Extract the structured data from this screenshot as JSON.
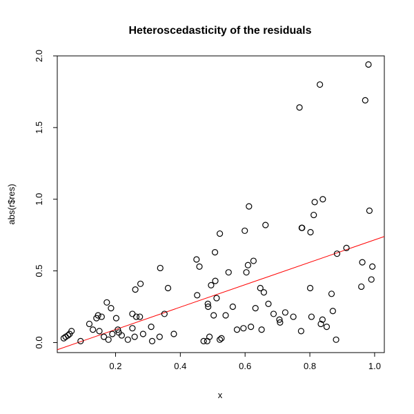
{
  "chart_data": {
    "type": "scatter",
    "title": "Heteroscedasticity of the residuals",
    "xlabel": "x",
    "ylabel": "abs(r$res)",
    "xlim": [
      0.02,
      1.03
    ],
    "ylim": [
      -0.07,
      2.0
    ],
    "xticks": [
      0.2,
      0.4,
      0.6,
      0.8,
      1.0
    ],
    "xtick_labels": [
      "0.2",
      "0.4",
      "0.6",
      "0.8",
      "1.0"
    ],
    "yticks": [
      0.0,
      0.5,
      1.0,
      1.5,
      2.0
    ],
    "ytick_labels": [
      "0.0",
      "0.5",
      "1.0",
      "1.5",
      "2.0"
    ],
    "grid": false,
    "legend": "none",
    "colors": {
      "points": "#000000",
      "fit_line": "#ff0000"
    },
    "fit_line": {
      "x": [
        0.02,
        1.03
      ],
      "y": [
        -0.05,
        0.74
      ]
    },
    "points": [
      [
        0.04,
        0.03
      ],
      [
        0.046,
        0.04
      ],
      [
        0.053,
        0.05
      ],
      [
        0.058,
        0.06
      ],
      [
        0.064,
        0.08
      ],
      [
        0.092,
        0.01
      ],
      [
        0.119,
        0.13
      ],
      [
        0.13,
        0.09
      ],
      [
        0.141,
        0.17
      ],
      [
        0.146,
        0.19
      ],
      [
        0.15,
        0.08
      ],
      [
        0.157,
        0.18
      ],
      [
        0.164,
        0.04
      ],
      [
        0.173,
        0.28
      ],
      [
        0.178,
        0.02
      ],
      [
        0.186,
        0.24
      ],
      [
        0.19,
        0.06
      ],
      [
        0.202,
        0.17
      ],
      [
        0.207,
        0.09
      ],
      [
        0.21,
        0.07
      ],
      [
        0.219,
        0.05
      ],
      [
        0.238,
        0.02
      ],
      [
        0.252,
        0.2
      ],
      [
        0.252,
        0.1
      ],
      [
        0.259,
        0.04
      ],
      [
        0.261,
        0.37
      ],
      [
        0.264,
        0.18
      ],
      [
        0.275,
        0.18
      ],
      [
        0.277,
        0.41
      ],
      [
        0.285,
        0.06
      ],
      [
        0.31,
        0.11
      ],
      [
        0.313,
        0.01
      ],
      [
        0.336,
        0.04
      ],
      [
        0.338,
        0.52
      ],
      [
        0.351,
        0.2
      ],
      [
        0.362,
        0.38
      ],
      [
        0.38,
        0.06
      ],
      [
        0.45,
        0.58
      ],
      [
        0.452,
        0.33
      ],
      [
        0.459,
        0.53
      ],
      [
        0.472,
        0.01
      ],
      [
        0.483,
        0.01
      ],
      [
        0.485,
        0.27
      ],
      [
        0.486,
        0.25
      ],
      [
        0.49,
        0.04
      ],
      [
        0.495,
        0.4
      ],
      [
        0.503,
        0.19
      ],
      [
        0.507,
        0.63
      ],
      [
        0.508,
        0.43
      ],
      [
        0.512,
        0.31
      ],
      [
        0.522,
        0.76
      ],
      [
        0.522,
        0.02
      ],
      [
        0.527,
        0.03
      ],
      [
        0.54,
        0.19
      ],
      [
        0.549,
        0.49
      ],
      [
        0.562,
        0.25
      ],
      [
        0.575,
        0.09
      ],
      [
        0.595,
        0.1
      ],
      [
        0.599,
        0.78
      ],
      [
        0.604,
        0.49
      ],
      [
        0.609,
        0.54
      ],
      [
        0.612,
        0.95
      ],
      [
        0.618,
        0.11
      ],
      [
        0.626,
        0.57
      ],
      [
        0.632,
        0.24
      ],
      [
        0.647,
        0.38
      ],
      [
        0.651,
        0.09
      ],
      [
        0.658,
        0.35
      ],
      [
        0.663,
        0.82
      ],
      [
        0.672,
        0.27
      ],
      [
        0.688,
        0.2
      ],
      [
        0.706,
        0.16
      ],
      [
        0.708,
        0.14
      ],
      [
        0.724,
        0.21
      ],
      [
        0.749,
        0.18
      ],
      [
        0.768,
        1.64
      ],
      [
        0.773,
        0.08
      ],
      [
        0.775,
        0.8
      ],
      [
        0.776,
        0.8
      ],
      [
        0.801,
        0.38
      ],
      [
        0.802,
        0.77
      ],
      [
        0.805,
        0.18
      ],
      [
        0.812,
        0.89
      ],
      [
        0.815,
        0.98
      ],
      [
        0.831,
        1.8
      ],
      [
        0.834,
        0.13
      ],
      [
        0.839,
        0.16
      ],
      [
        0.84,
        1.0
      ],
      [
        0.852,
        0.11
      ],
      [
        0.867,
        0.34
      ],
      [
        0.871,
        0.22
      ],
      [
        0.881,
        0.02
      ],
      [
        0.884,
        0.62
      ],
      [
        0.913,
        0.66
      ],
      [
        0.959,
        0.39
      ],
      [
        0.962,
        0.56
      ],
      [
        0.971,
        1.69
      ],
      [
        0.981,
        1.94
      ],
      [
        0.984,
        0.92
      ],
      [
        0.99,
        0.44
      ],
      [
        0.993,
        0.53
      ]
    ]
  }
}
